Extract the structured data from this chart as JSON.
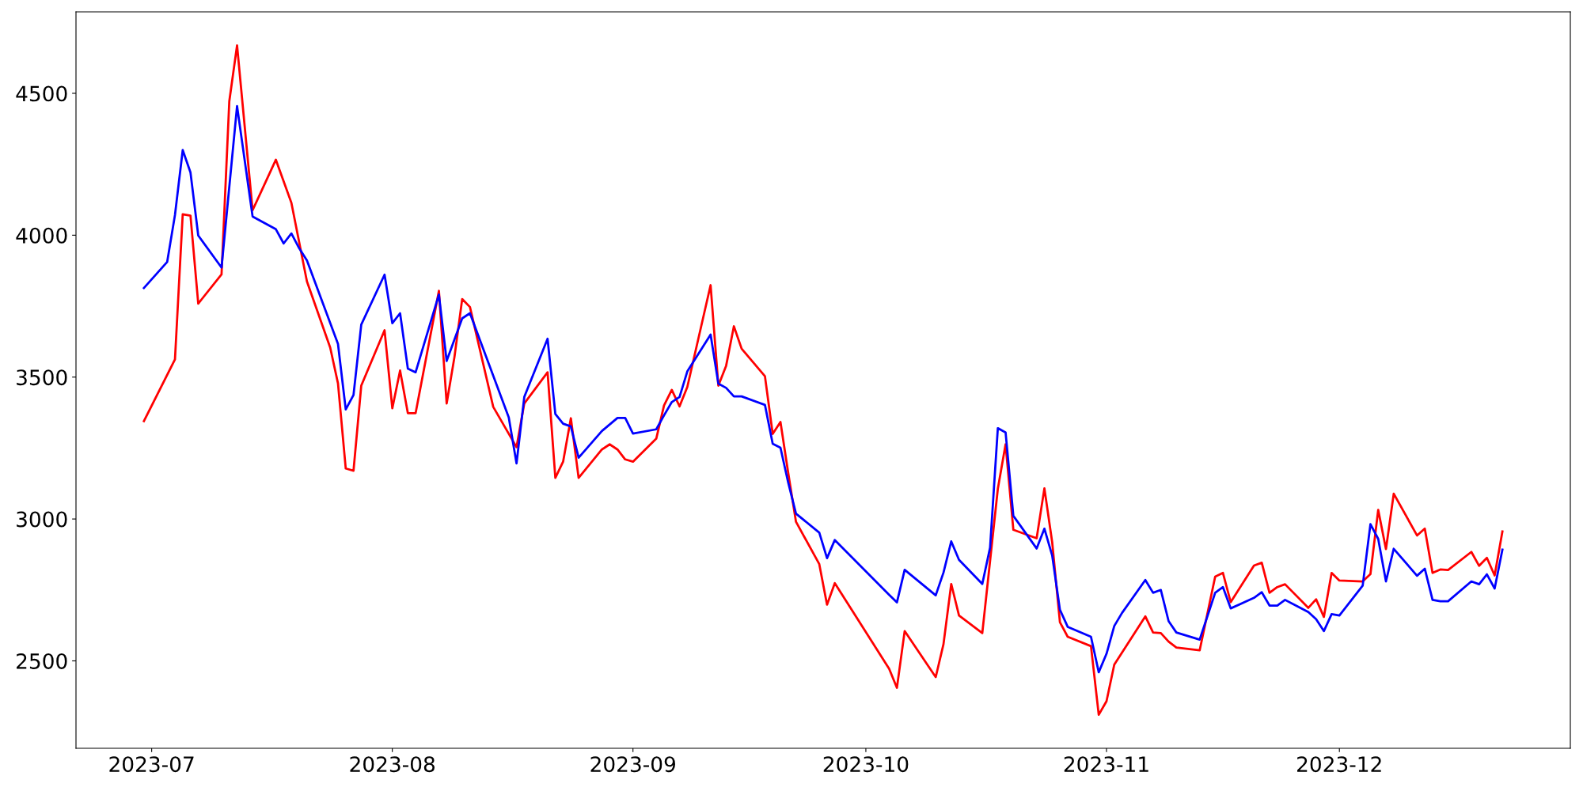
{
  "chart_data": {
    "type": "line",
    "xlim": [
      "2023-06-21T06:00",
      "2023-12-30T18:00"
    ],
    "ylim": [
      2192,
      4787
    ],
    "xticks": [
      {
        "value": "2023-07-01",
        "label": "2023-07"
      },
      {
        "value": "2023-08-01",
        "label": "2023-08"
      },
      {
        "value": "2023-09-01",
        "label": "2023-09"
      },
      {
        "value": "2023-10-01",
        "label": "2023-10"
      },
      {
        "value": "2023-11-01",
        "label": "2023-11"
      },
      {
        "value": "2023-12-01",
        "label": "2023-12"
      }
    ],
    "yticks": [
      2500,
      3000,
      3500,
      4000,
      4500
    ],
    "grid": false,
    "marker": "none",
    "line_style": "solid",
    "series": [
      {
        "color": "#ff0000",
        "x": [
          "2023-06-30",
          "2023-07-04",
          "2023-07-05",
          "2023-07-06",
          "2023-07-07",
          "2023-07-10",
          "2023-07-11",
          "2023-07-12",
          "2023-07-14",
          "2023-07-17",
          "2023-07-19",
          "2023-07-21",
          "2023-07-24",
          "2023-07-25",
          "2023-07-26",
          "2023-07-27",
          "2023-07-28",
          "2023-07-31",
          "2023-08-01",
          "2023-08-02",
          "2023-08-03",
          "2023-08-04",
          "2023-08-07",
          "2023-08-08",
          "2023-08-09",
          "2023-08-10",
          "2023-08-11",
          "2023-08-14",
          "2023-08-17",
          "2023-08-18",
          "2023-08-21",
          "2023-08-22",
          "2023-08-23",
          "2023-08-24",
          "2023-08-25",
          "2023-08-28",
          "2023-08-29",
          "2023-08-30",
          "2023-08-31",
          "2023-09-01",
          "2023-09-04",
          "2023-09-05",
          "2023-09-06",
          "2023-09-07",
          "2023-09-08",
          "2023-09-11",
          "2023-09-12",
          "2023-09-13",
          "2023-09-14",
          "2023-09-15",
          "2023-09-18",
          "2023-09-19",
          "2023-09-20",
          "2023-09-21",
          "2023-09-22",
          "2023-09-25",
          "2023-09-26",
          "2023-09-27",
          "2023-10-04",
          "2023-10-05",
          "2023-10-06",
          "2023-10-10",
          "2023-10-11",
          "2023-10-12",
          "2023-10-13",
          "2023-10-16",
          "2023-10-18",
          "2023-10-19",
          "2023-10-20",
          "2023-10-23",
          "2023-10-24",
          "2023-10-25",
          "2023-10-26",
          "2023-10-27",
          "2023-10-30",
          "2023-10-31",
          "2023-11-01",
          "2023-11-02",
          "2023-11-06",
          "2023-11-07",
          "2023-11-08",
          "2023-11-09",
          "2023-11-10",
          "2023-11-13",
          "2023-11-15",
          "2023-11-16",
          "2023-11-17",
          "2023-11-20",
          "2023-11-21",
          "2023-11-22",
          "2023-11-23",
          "2023-11-24",
          "2023-11-27",
          "2023-11-28",
          "2023-11-29",
          "2023-11-30",
          "2023-12-01",
          "2023-12-04",
          "2023-12-05",
          "2023-12-06",
          "2023-12-07",
          "2023-12-08",
          "2023-12-11",
          "2023-12-12",
          "2023-12-13",
          "2023-12-14",
          "2023-12-15",
          "2023-12-18",
          "2023-12-19",
          "2023-12-20",
          "2023-12-21",
          "2023-12-22"
        ],
        "values": [
          3345,
          3562,
          4074,
          4069,
          3759,
          3862,
          4472,
          4669,
          4088,
          4266,
          4114,
          3837,
          3604,
          3478,
          3178,
          3170,
          3470,
          3665,
          3390,
          3523,
          3373,
          3373,
          3804,
          3407,
          3570,
          3775,
          3747,
          3395,
          3253,
          3407,
          3517,
          3145,
          3202,
          3355,
          3145,
          3245,
          3263,
          3245,
          3210,
          3202,
          3283,
          3400,
          3455,
          3397,
          3465,
          3824,
          3470,
          3540,
          3679,
          3600,
          3503,
          3300,
          3342,
          3162,
          2990,
          2841,
          2698,
          2774,
          2472,
          2405,
          2605,
          2443,
          2559,
          2771,
          2660,
          2598,
          3106,
          3263,
          2962,
          2932,
          3108,
          2919,
          2636,
          2585,
          2552,
          2310,
          2358,
          2487,
          2657,
          2600,
          2598,
          2568,
          2547,
          2537,
          2797,
          2810,
          2707,
          2836,
          2846,
          2740,
          2760,
          2770,
          2687,
          2717,
          2655,
          2810,
          2783,
          2780,
          2806,
          3032,
          2894,
          3089,
          2942,
          2966,
          2810,
          2822,
          2820,
          2884,
          2835,
          2863,
          2801,
          2956
        ]
      },
      {
        "color": "#0000ff",
        "x": [
          "2023-06-30",
          "2023-07-03",
          "2023-07-04",
          "2023-07-05",
          "2023-07-06",
          "2023-07-07",
          "2023-07-10",
          "2023-07-12",
          "2023-07-14",
          "2023-07-17",
          "2023-07-18",
          "2023-07-19",
          "2023-07-20",
          "2023-07-21",
          "2023-07-25",
          "2023-07-26",
          "2023-07-27",
          "2023-07-28",
          "2023-07-31",
          "2023-08-01",
          "2023-08-02",
          "2023-08-03",
          "2023-08-04",
          "2023-08-07",
          "2023-08-08",
          "2023-08-10",
          "2023-08-11",
          "2023-08-16",
          "2023-08-17",
          "2023-08-18",
          "2023-08-21",
          "2023-08-22",
          "2023-08-23",
          "2023-08-24",
          "2023-08-25",
          "2023-08-28",
          "2023-08-29",
          "2023-08-30",
          "2023-08-31",
          "2023-09-01",
          "2023-09-04",
          "2023-09-05",
          "2023-09-06",
          "2023-09-07",
          "2023-09-08",
          "2023-09-11",
          "2023-09-12",
          "2023-09-13",
          "2023-09-14",
          "2023-09-15",
          "2023-09-18",
          "2023-09-19",
          "2023-09-20",
          "2023-09-21",
          "2023-09-22",
          "2023-09-25",
          "2023-09-26",
          "2023-09-27",
          "2023-10-04",
          "2023-10-05",
          "2023-10-06",
          "2023-10-10",
          "2023-10-11",
          "2023-10-12",
          "2023-10-13",
          "2023-10-16",
          "2023-10-17",
          "2023-10-18",
          "2023-10-19",
          "2023-10-20",
          "2023-10-23",
          "2023-10-24",
          "2023-10-25",
          "2023-10-26",
          "2023-10-27",
          "2023-10-30",
          "2023-10-31",
          "2023-11-01",
          "2023-11-02",
          "2023-11-03",
          "2023-11-06",
          "2023-11-07",
          "2023-11-08",
          "2023-11-09",
          "2023-11-10",
          "2023-11-13",
          "2023-11-15",
          "2023-11-16",
          "2023-11-17",
          "2023-11-20",
          "2023-11-21",
          "2023-11-22",
          "2023-11-23",
          "2023-11-24",
          "2023-11-27",
          "2023-11-28",
          "2023-11-29",
          "2023-11-30",
          "2023-12-01",
          "2023-12-04",
          "2023-12-05",
          "2023-12-06",
          "2023-12-07",
          "2023-12-08",
          "2023-12-11",
          "2023-12-12",
          "2023-12-13",
          "2023-12-14",
          "2023-12-15",
          "2023-12-18",
          "2023-12-19",
          "2023-12-20",
          "2023-12-21",
          "2023-12-22"
        ],
        "values": [
          3814,
          3906,
          4071,
          4300,
          4221,
          3999,
          3886,
          4455,
          4066,
          4021,
          3971,
          4006,
          3954,
          3911,
          3617,
          3386,
          3437,
          3685,
          3861,
          3690,
          3725,
          3530,
          3517,
          3791,
          3557,
          3707,
          3725,
          3358,
          3196,
          3430,
          3635,
          3370,
          3336,
          3326,
          3216,
          3310,
          3333,
          3356,
          3356,
          3301,
          3316,
          3365,
          3412,
          3430,
          3520,
          3650,
          3477,
          3462,
          3432,
          3432,
          3402,
          3265,
          3251,
          3128,
          3019,
          2952,
          2862,
          2926,
          2733,
          2706,
          2821,
          2731,
          2811,
          2921,
          2856,
          2771,
          2899,
          3320,
          3305,
          3011,
          2896,
          2966,
          2872,
          2680,
          2620,
          2585,
          2460,
          2525,
          2623,
          2669,
          2785,
          2740,
          2750,
          2640,
          2600,
          2575,
          2740,
          2760,
          2685,
          2722,
          2742,
          2695,
          2695,
          2715,
          2672,
          2647,
          2605,
          2665,
          2660,
          2765,
          2982,
          2930,
          2780,
          2895,
          2800,
          2825,
          2715,
          2710,
          2710,
          2780,
          2770,
          2805,
          2755,
          2892
        ]
      }
    ]
  }
}
